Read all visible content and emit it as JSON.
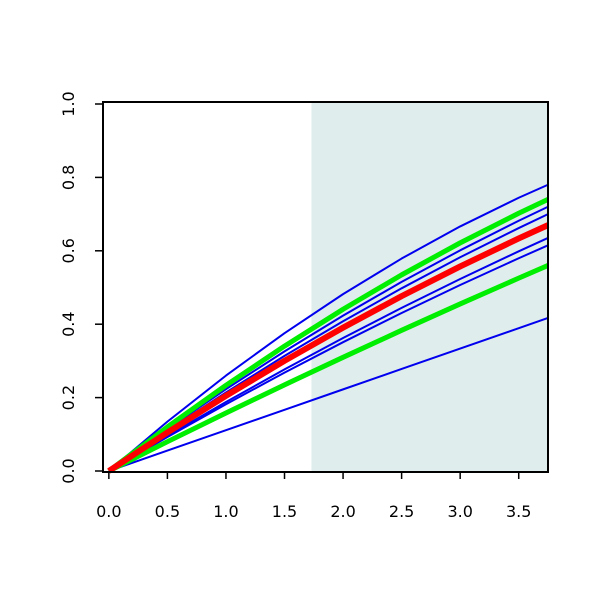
{
  "chart_data": {
    "type": "line",
    "x": [
      0,
      0.5,
      1,
      1.5,
      2,
      2.5,
      3,
      3.5,
      3.75
    ],
    "series": [
      {
        "color": "#0000ee",
        "width": 2,
        "values": [
          0,
          0.1346,
          0.2599,
          0.3756,
          0.482,
          0.5789,
          0.6664,
          0.7445,
          0.78
        ]
      },
      {
        "color": "#0000ee",
        "width": 2,
        "values": [
          0,
          0.1143,
          0.223,
          0.326,
          0.4234,
          0.5152,
          0.6013,
          0.6819,
          0.72
        ]
      },
      {
        "color": "#0000ee",
        "width": 2,
        "values": [
          0,
          0.1095,
          0.2141,
          0.3136,
          0.4081,
          0.4978,
          0.5824,
          0.662,
          0.7
        ]
      },
      {
        "color": "#0000ee",
        "width": 2,
        "values": [
          0,
          0.0957,
          0.1879,
          0.2769,
          0.3624,
          0.4445,
          0.5232,
          0.5986,
          0.635
        ]
      },
      {
        "color": "#0000ee",
        "width": 2,
        "values": [
          0,
          0.0927,
          0.182,
          0.2681,
          0.351,
          0.4305,
          0.5068,
          0.5797,
          0.615
        ]
      },
      {
        "color": "#0000ee",
        "width": 2,
        "values": [
          0,
          0.0556,
          0.1112,
          0.1668,
          0.2224,
          0.278,
          0.3336,
          0.3892,
          0.417
        ]
      },
      {
        "color": "#00ee00",
        "width": 5,
        "values": [
          0,
          0.12,
          0.2335,
          0.3404,
          0.4407,
          0.5344,
          0.6216,
          0.7022,
          0.74
        ]
      },
      {
        "color": "#00ee00",
        "width": 5,
        "values": [
          0,
          0.0799,
          0.1581,
          0.2348,
          0.3098,
          0.3833,
          0.4552,
          0.5255,
          0.56
        ]
      },
      {
        "color": "#ff0000",
        "width": 6,
        "values": [
          0,
          0.1048,
          0.2049,
          0.3002,
          0.3906,
          0.4765,
          0.5574,
          0.6336,
          0.67
        ]
      }
    ],
    "shade_from": 1.73,
    "shade_color": "#e0eded",
    "xlim": [
      -0.05,
      3.75
    ],
    "xticks": [
      {
        "value": 0,
        "label": "0.0"
      },
      0.5,
      {
        "value": 1,
        "label": "1.0"
      },
      1.5,
      {
        "value": 2,
        "label": "2.0"
      },
      2.5,
      {
        "value": 3,
        "label": "3.0"
      },
      3.5
    ],
    "ylim": [
      0,
      1
    ],
    "yticks": [
      {
        "value": 0,
        "label": "0.0"
      },
      0.2,
      0.4,
      0.6,
      0.8,
      {
        "value": 1,
        "label": "1.0"
      }
    ]
  }
}
